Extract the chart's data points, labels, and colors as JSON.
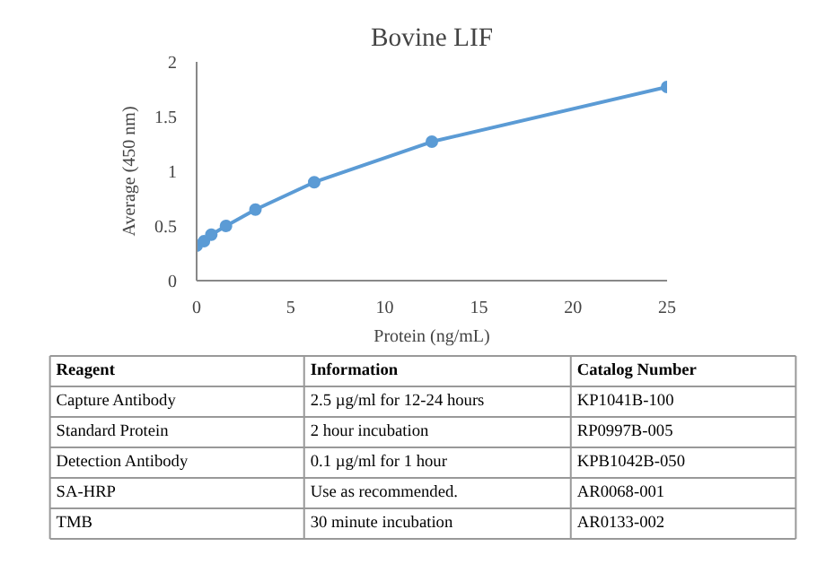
{
  "chart_data": {
    "type": "line",
    "title": "Bovine LIF",
    "xlabel": "Protein (ng/mL)",
    "ylabel": "Average (450 nm)",
    "x": [
      0,
      0.39,
      0.78,
      1.56,
      3.125,
      6.25,
      12.5,
      25
    ],
    "series": [
      {
        "color": "#5b9bd5",
        "values": [
          0.32,
          0.36,
          0.42,
          0.5,
          0.65,
          0.9,
          1.27,
          1.77
        ]
      }
    ],
    "xlim": [
      0,
      25
    ],
    "ylim": [
      0,
      2
    ],
    "xticks": [
      0,
      5,
      10,
      15,
      20,
      25
    ],
    "yticks": [
      0,
      0.5,
      1,
      1.5,
      2
    ],
    "grid": false,
    "marker": "circle",
    "line_style": "solid",
    "annotations": [
      "Reagent",
      "Information",
      "Catalog Number",
      "Capture Antibody",
      "2.5 µg/ml for 12-24 hours",
      "KP1041B-100",
      "Standard Protein",
      "2 hour incubation",
      "RP0997B-005",
      "Detection Antibody",
      "0.1 µg/ml for 1 hour",
      "KPB1042B-050",
      "SA-HRP",
      "Use as recommended.",
      "AR0068-001",
      "TMB",
      "30 minute incubation",
      "AR0133-002"
    ]
  }
}
